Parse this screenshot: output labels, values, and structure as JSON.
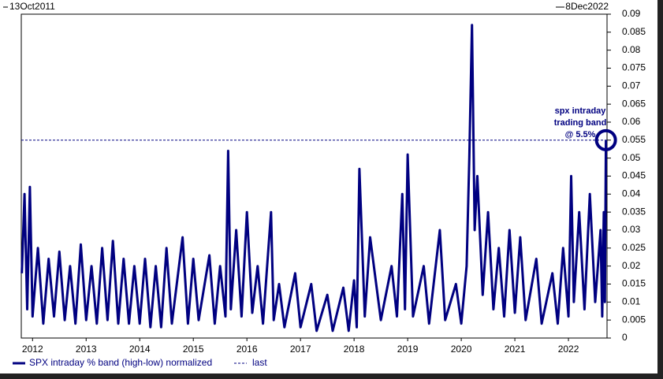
{
  "chart_data": {
    "type": "line",
    "start_label": "13Oct2011",
    "end_label": "8Dec2022",
    "annotation": [
      "spx intraday",
      "trading band",
      "@ 5.5%"
    ],
    "x": [
      2011.8,
      2011.85,
      2011.9,
      2011.95,
      2012.0,
      2012.1,
      2012.2,
      2012.3,
      2012.4,
      2012.5,
      2012.6,
      2012.7,
      2012.8,
      2012.9,
      2013.0,
      2013.1,
      2013.2,
      2013.3,
      2013.4,
      2013.5,
      2013.6,
      2013.7,
      2013.8,
      2013.9,
      2014.0,
      2014.1,
      2014.2,
      2014.3,
      2014.4,
      2014.5,
      2014.6,
      2014.8,
      2014.9,
      2015.0,
      2015.1,
      2015.3,
      2015.4,
      2015.5,
      2015.6,
      2015.65,
      2015.7,
      2015.8,
      2015.9,
      2016.0,
      2016.1,
      2016.2,
      2016.3,
      2016.45,
      2016.5,
      2016.6,
      2016.7,
      2016.9,
      2017.0,
      2017.2,
      2017.3,
      2017.5,
      2017.6,
      2017.8,
      2017.9,
      2018.0,
      2018.05,
      2018.1,
      2018.2,
      2018.3,
      2018.5,
      2018.7,
      2018.8,
      2018.9,
      2018.95,
      2019.0,
      2019.1,
      2019.3,
      2019.4,
      2019.6,
      2019.7,
      2019.9,
      2020.0,
      2020.1,
      2020.15,
      2020.2,
      2020.25,
      2020.3,
      2020.4,
      2020.5,
      2020.6,
      2020.7,
      2020.8,
      2020.9,
      2021.0,
      2021.1,
      2021.2,
      2021.4,
      2021.5,
      2021.7,
      2021.8,
      2021.9,
      2022.0,
      2022.05,
      2022.1,
      2022.2,
      2022.3,
      2022.4,
      2022.5,
      2022.6,
      2022.63,
      2022.66,
      2022.68,
      2022.7
    ],
    "series": [
      {
        "name": "SPX intraday % band (high-low) normalized",
        "color": "#000080",
        "values": [
          0.018,
          0.04,
          0.008,
          0.042,
          0.006,
          0.025,
          0.004,
          0.022,
          0.006,
          0.024,
          0.005,
          0.02,
          0.004,
          0.026,
          0.005,
          0.02,
          0.004,
          0.025,
          0.005,
          0.027,
          0.004,
          0.022,
          0.004,
          0.02,
          0.004,
          0.022,
          0.003,
          0.02,
          0.003,
          0.025,
          0.004,
          0.028,
          0.004,
          0.022,
          0.005,
          0.023,
          0.004,
          0.02,
          0.006,
          0.052,
          0.008,
          0.03,
          0.006,
          0.035,
          0.007,
          0.02,
          0.004,
          0.035,
          0.005,
          0.015,
          0.003,
          0.018,
          0.003,
          0.015,
          0.002,
          0.012,
          0.002,
          0.014,
          0.002,
          0.016,
          0.003,
          0.047,
          0.006,
          0.028,
          0.005,
          0.02,
          0.006,
          0.04,
          0.008,
          0.051,
          0.006,
          0.02,
          0.004,
          0.03,
          0.005,
          0.015,
          0.004,
          0.02,
          0.05,
          0.087,
          0.03,
          0.045,
          0.012,
          0.035,
          0.008,
          0.025,
          0.006,
          0.03,
          0.007,
          0.028,
          0.005,
          0.022,
          0.004,
          0.018,
          0.004,
          0.025,
          0.006,
          0.045,
          0.01,
          0.035,
          0.008,
          0.04,
          0.01,
          0.03,
          0.006,
          0.035,
          0.01,
          0.055
        ]
      },
      {
        "name": "last",
        "color": "#000080",
        "value": 0.055
      }
    ],
    "xlim": [
      2011.79,
      2022.72
    ],
    "xticks": [
      2012,
      2013,
      2014,
      2015,
      2016,
      2017,
      2018,
      2019,
      2020,
      2021,
      2022
    ],
    "ylim": [
      0,
      0.09
    ],
    "yticks": [
      0,
      0.005,
      0.01,
      0.015,
      0.02,
      0.025,
      0.03,
      0.035,
      0.04,
      0.045,
      0.05,
      0.055,
      0.06,
      0.065,
      0.07,
      0.075,
      0.08,
      0.085,
      0.09
    ]
  }
}
